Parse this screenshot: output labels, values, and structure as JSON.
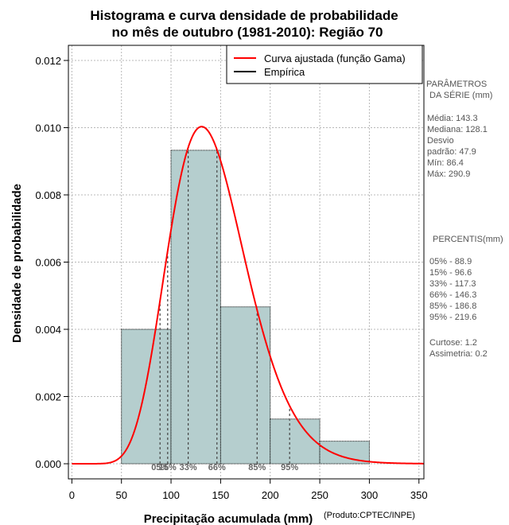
{
  "chart_data": {
    "type": "bar",
    "title": "Histograma e curva densidade de probabilidade",
    "subtitle": "no mês de outubro (1981-2010): Região 70",
    "xlabel": "Precipitação acumulada (mm)",
    "ylabel": "Densidade de probabilidade",
    "credit": "(Produto:CPTEC/INPE)",
    "xlim": [
      -3.5,
      355
    ],
    "ylim": [
      -0.00045,
      0.01245
    ],
    "x_ticks": [
      0,
      50,
      100,
      150,
      200,
      250,
      300,
      350
    ],
    "y_ticks": [
      0.0,
      0.002,
      0.004,
      0.006,
      0.008,
      0.01,
      0.012
    ],
    "y_tick_labels": [
      "0.000",
      "0.002",
      "0.004",
      "0.006",
      "0.008",
      "0.010",
      "0.012"
    ],
    "grid": true,
    "bins": [
      {
        "from": 50,
        "to": 100,
        "density": 0.004
      },
      {
        "from": 100,
        "to": 150,
        "density": 0.00933
      },
      {
        "from": 150,
        "to": 200,
        "density": 0.00467
      },
      {
        "from": 200,
        "to": 250,
        "density": 0.00133
      },
      {
        "from": 250,
        "to": 300,
        "density": 0.00067
      }
    ],
    "fit_curve": {
      "name": "Curva ajustada (função Gama)",
      "distribution": "gamma",
      "shape": 12.0,
      "location": 0,
      "scale": 11.9,
      "color": "#ff0000"
    },
    "empirical": {
      "name": "Empírica",
      "color": "#000000"
    },
    "legend_position": "top-right",
    "bar_color": "#b5cece",
    "percentile_markers": [
      {
        "label": "05%",
        "value": 88.9
      },
      {
        "label": "15%",
        "value": 96.6
      },
      {
        "label": "33%",
        "value": 117.3
      },
      {
        "label": "66%",
        "value": 146.3
      },
      {
        "label": "85%",
        "value": 186.8
      },
      {
        "label": "95%",
        "value": 219.6
      }
    ]
  },
  "stats": {
    "params_title_1": "PARÂMETROS",
    "params_title_2": "DA SÉRIE (mm)",
    "media": "Média:  143.3",
    "mediana": "Mediana:  128.1",
    "desvio_1": "Desvio",
    "desvio_2": "padrão:  47.9",
    "min": "Mín:  86.4",
    "max": "Máx:  290.9",
    "percentis_title": "PERCENTIS(mm)",
    "p05": "05% -   88.9",
    "p15": "15% -   96.6",
    "p33": "33% -  117.3",
    "p66": "66% -  146.3",
    "p85": "85% -  186.8",
    "p95": "95% -  219.6",
    "curtose": "Curtose:  1.2",
    "assimetria": "Assimetria:  0.2"
  }
}
